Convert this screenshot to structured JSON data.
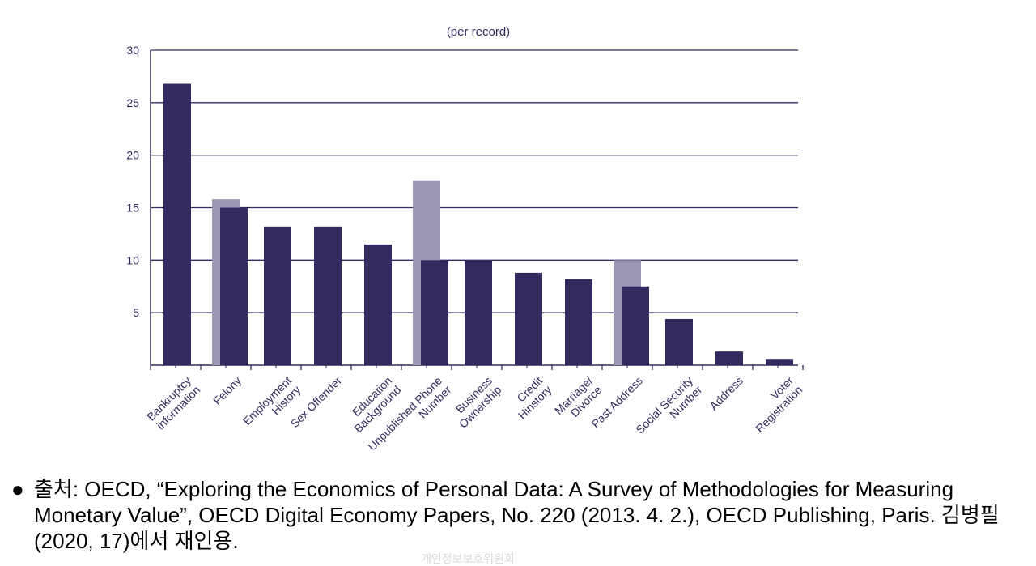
{
  "chart_data": {
    "type": "bar",
    "title": "(per record)",
    "xlabel": "",
    "ylabel": "",
    "ylim": [
      0,
      30
    ],
    "yticks": [
      5,
      10,
      15,
      20,
      25,
      30
    ],
    "grid": true,
    "categories": [
      [
        "Bankruptcy",
        "information"
      ],
      [
        "Felony"
      ],
      [
        "Employment",
        "History"
      ],
      [
        "Sex Offender"
      ],
      [
        "Education",
        "Background"
      ],
      [
        "Unpublished Phone",
        "Number"
      ],
      [
        "Business",
        "Ownership"
      ],
      [
        "Credit",
        "Hinstory"
      ],
      [
        "Marriage/",
        "Divorce"
      ],
      [
        "Past Address"
      ],
      [
        "Social Security",
        "Number"
      ],
      [
        "Address"
      ],
      [
        "Voter",
        "Registration"
      ]
    ],
    "series": [
      {
        "name": "secondary",
        "color": "#9e97b4",
        "values": [
          null,
          15.8,
          null,
          null,
          null,
          17.6,
          null,
          null,
          null,
          10.0,
          null,
          null,
          null
        ]
      },
      {
        "name": "primary",
        "color": "#332a5f",
        "values": [
          26.8,
          15.0,
          13.2,
          13.2,
          11.5,
          10.0,
          10.0,
          8.8,
          8.2,
          7.5,
          4.4,
          1.3,
          0.6
        ]
      }
    ],
    "colors": {
      "axis": "#332a5f",
      "grid": "#332a5f",
      "text": "#332a5f"
    }
  },
  "source": {
    "bullet": "●",
    "text": "출처: OECD, “Exploring the Economics of Personal Data: A Survey of Methodologies for Measuring Monetary Value”, OECD Digital Economy Papers, No. 220 (2013. 4. 2.), OECD Publishing, Paris. 김병필 (2020, 17)에서 재인용."
  },
  "footer": {
    "faint_text": "개인정보보호위원회"
  }
}
